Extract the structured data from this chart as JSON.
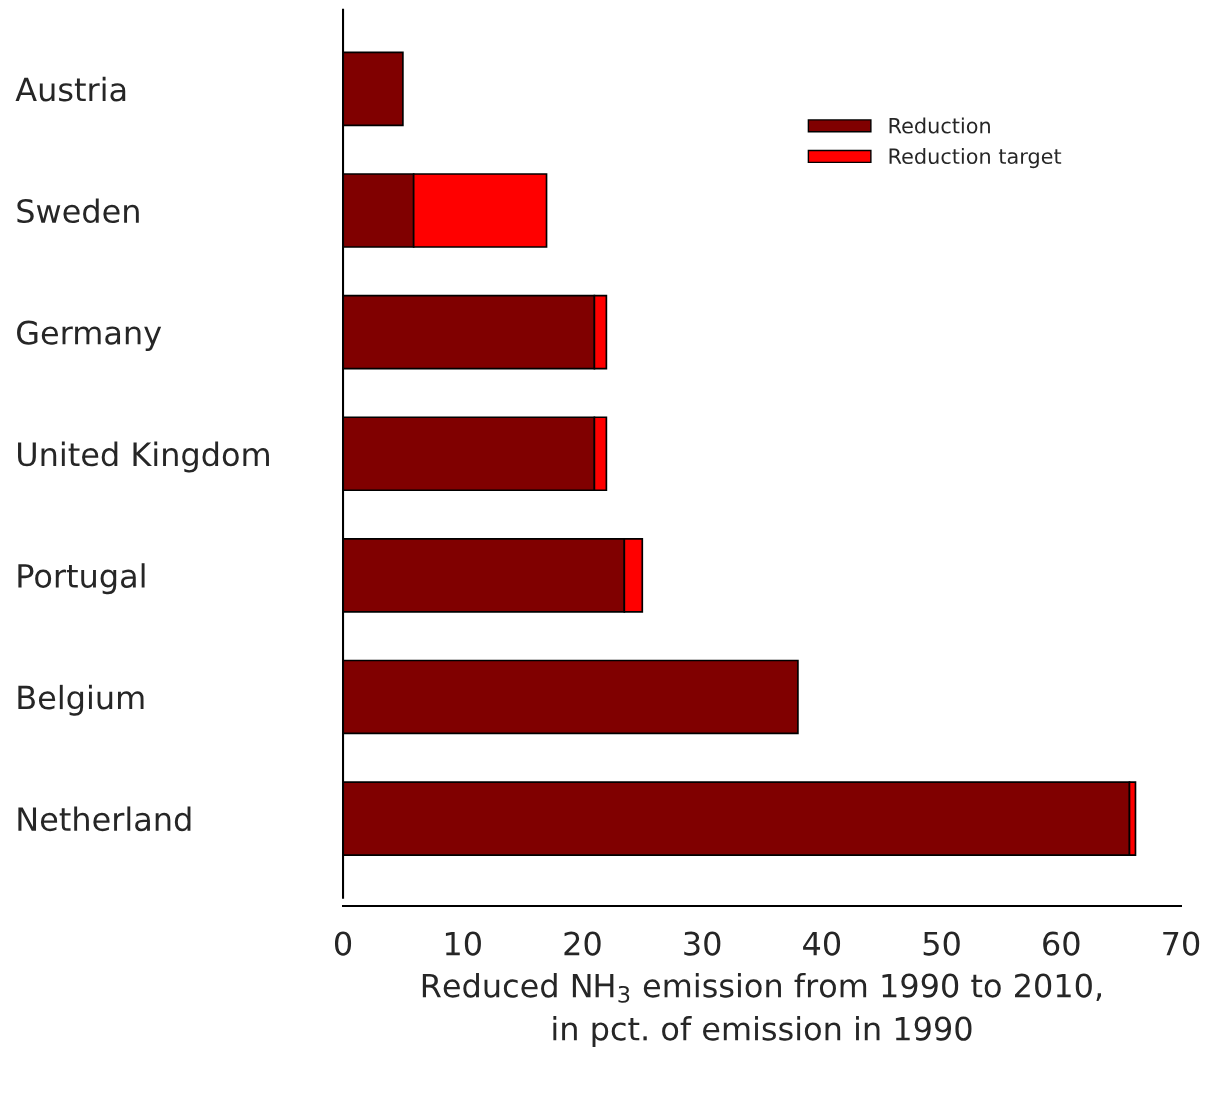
{
  "chart_data": {
    "type": "bar",
    "orientation": "horizontal",
    "stacked": true,
    "categories": [
      "Austria",
      "Sweden",
      "Germany",
      "United Kingdom",
      "Portugal",
      "Belgium",
      "Netherland"
    ],
    "series": [
      {
        "name": "Reduction",
        "color": "#800000",
        "values": [
          5,
          5.9,
          21,
          21,
          23.5,
          38,
          65.7
        ]
      },
      {
        "name": "Reduction target",
        "color": "#ff0000",
        "values": [
          null,
          11.1,
          1,
          1,
          1.5,
          null,
          0.5
        ]
      }
    ],
    "xlabel": "Reduced NH$_{3}$ emission from 1990 to 2010,\nin pct. of emission in 1990",
    "xlim": [
      0,
      70
    ],
    "xticks": [
      0,
      10,
      20,
      30,
      40,
      50,
      60,
      70
    ],
    "grid": false,
    "legend": "top right"
  }
}
